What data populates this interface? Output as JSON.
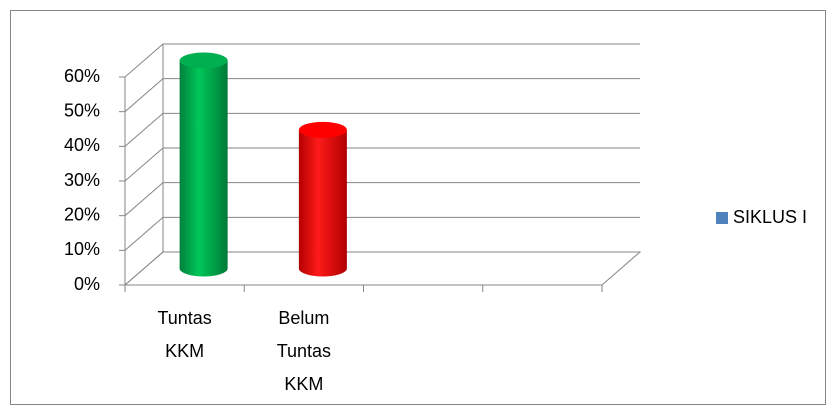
{
  "chart_data": {
    "type": "bar3d",
    "categories": [
      "Tuntas KKM",
      "Belum Tuntas KKM",
      null,
      null
    ],
    "series": [
      {
        "name": "SIKLUS I",
        "color": "#4f81bd",
        "values": [
          60,
          40,
          null,
          null
        ],
        "colors": [
          "#00b050",
          "#ff0000",
          null,
          null
        ]
      }
    ],
    "ylim": [
      0,
      60
    ],
    "yticks": [
      {
        "value": 0,
        "label": "0%"
      },
      {
        "value": 10,
        "label": "10%"
      },
      {
        "value": 20,
        "label": "20%"
      },
      {
        "value": 30,
        "label": "30%"
      },
      {
        "value": 40,
        "label": "40%"
      },
      {
        "value": 50,
        "label": "50%"
      },
      {
        "value": 60,
        "label": "60%"
      }
    ],
    "grid": true,
    "legend": "right"
  }
}
